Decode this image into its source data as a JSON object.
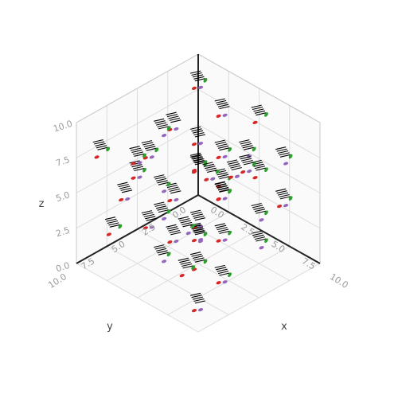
{
  "chart_data": {
    "type": "scatter3d",
    "title": "",
    "xlabel": "x",
    "ylabel": "y",
    "zlabel": "z",
    "xlim": [
      0,
      10
    ],
    "ylim": [
      0,
      10
    ],
    "zlim": [
      0,
      10
    ],
    "x_ticks": [
      "0.0",
      "2.5",
      "5.0",
      "7.5",
      "10.0"
    ],
    "y_ticks": [
      "0.0",
      "2.5",
      "5.0",
      "7.5",
      "10.0"
    ],
    "z_ticks": [
      "0.0",
      "2.5",
      "5.0",
      "7.5",
      "10.0"
    ],
    "x_tick_values": [
      0,
      2.5,
      5,
      7.5,
      10
    ],
    "y_tick_values": [
      0,
      2.5,
      5,
      7.5,
      10
    ],
    "z_tick_values": [
      0,
      2.5,
      5,
      7.5,
      10
    ],
    "marker_colors": [
      "#d62728",
      "#9467bd",
      "#2ca02c",
      "#000000"
    ],
    "glyphs": [
      {
        "x": 1,
        "y": 1,
        "z": 9
      },
      {
        "x": 3,
        "y": 1,
        "z": 8
      },
      {
        "x": 6,
        "y": 1,
        "z": 9
      },
      {
        "x": 8,
        "y": 1,
        "z": 7
      },
      {
        "x": 9,
        "y": 2,
        "z": 5
      },
      {
        "x": 2,
        "y": 2,
        "z": 6
      },
      {
        "x": 4,
        "y": 2,
        "z": 4
      },
      {
        "x": 7,
        "y": 2,
        "z": 3
      },
      {
        "x": 5,
        "y": 3,
        "z": 7
      },
      {
        "x": 1,
        "y": 3,
        "z": 2
      },
      {
        "x": 3,
        "y": 3,
        "z": 5
      },
      {
        "x": 8,
        "y": 3,
        "z": 2
      },
      {
        "x": 6,
        "y": 4,
        "z": 5
      },
      {
        "x": 2,
        "y": 4,
        "z": 8
      },
      {
        "x": 9,
        "y": 4,
        "z": 8
      },
      {
        "x": 4,
        "y": 4,
        "z": 1
      },
      {
        "x": 1,
        "y": 5,
        "z": 6
      },
      {
        "x": 5,
        "y": 5,
        "z": 3
      },
      {
        "x": 7,
        "y": 5,
        "z": 6
      },
      {
        "x": 3,
        "y": 6,
        "z": 9
      },
      {
        "x": 8,
        "y": 6,
        "z": 4
      },
      {
        "x": 2,
        "y": 6,
        "z": 2
      },
      {
        "x": 6,
        "y": 6,
        "z": 1
      },
      {
        "x": 4,
        "y": 7,
        "z": 6
      },
      {
        "x": 9,
        "y": 7,
        "z": 2
      },
      {
        "x": 1,
        "y": 7,
        "z": 4
      },
      {
        "x": 7,
        "y": 7,
        "z": 9
      },
      {
        "x": 5,
        "y": 8,
        "z": 2
      },
      {
        "x": 3,
        "y": 8,
        "z": 7
      },
      {
        "x": 8,
        "y": 8,
        "z": 5
      },
      {
        "x": 2,
        "y": 9,
        "z": 3
      },
      {
        "x": 6,
        "y": 9,
        "z": 6
      },
      {
        "x": 4,
        "y": 9,
        "z": 9
      },
      {
        "x": 9,
        "y": 9,
        "z": 1
      },
      {
        "x": 1,
        "y": 9,
        "z": 8
      },
      {
        "x": 7,
        "y": 3,
        "z": 8
      },
      {
        "x": 5,
        "y": 1,
        "z": 5
      },
      {
        "x": 3,
        "y": 5,
        "z": 1
      },
      {
        "x": 8,
        "y": 9,
        "z": 3
      },
      {
        "x": 6,
        "y": 7,
        "z": 4
      },
      {
        "x": 2,
        "y": 1,
        "z": 3
      },
      {
        "x": 9,
        "y": 6,
        "z": 9
      }
    ]
  }
}
